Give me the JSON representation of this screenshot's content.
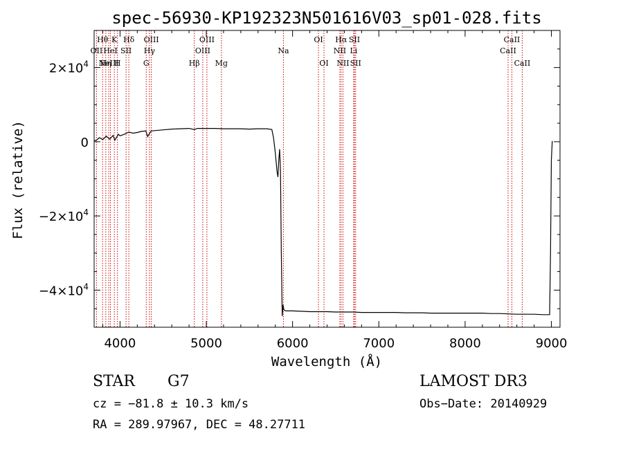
{
  "colors": {
    "background": "#ffffff",
    "foreground": "#000000",
    "line_marker": "#cc0000"
  },
  "chart_data": {
    "type": "line",
    "title": "spec-56930-KP192323N501616V03_sp01-028.fits",
    "xlabel": "Wavelength (Å)",
    "ylabel": "Flux (relative)",
    "xlim": [
      3700,
      9100
    ],
    "ylim": [
      -50000,
      30000
    ],
    "x_ticks": [
      {
        "value": 4000,
        "label": "4000"
      },
      {
        "value": 5000,
        "label": "5000"
      },
      {
        "value": 6000,
        "label": "6000"
      },
      {
        "value": 7000,
        "label": "7000"
      },
      {
        "value": 8000,
        "label": "8000"
      },
      {
        "value": 9000,
        "label": "9000"
      }
    ],
    "y_ticks": [
      {
        "value": 20000,
        "mantissa": "2×10",
        "exp": "4"
      },
      {
        "value": 0,
        "mantissa": "0",
        "exp": ""
      },
      {
        "value": -20000,
        "mantissa": "−2×10",
        "exp": "4"
      },
      {
        "value": -40000,
        "mantissa": "−4×10",
        "exp": "4"
      }
    ],
    "series": [
      {
        "x": [
          3700,
          3720,
          3760,
          3800,
          3840,
          3880,
          3920,
          3940,
          3960,
          3980,
          4000,
          4050,
          4100,
          4150,
          4200,
          4250,
          4300,
          4320,
          4340,
          4360,
          4400,
          4500,
          4600,
          4700,
          4800,
          4860,
          4900,
          5000,
          5100,
          5200,
          5300,
          5400,
          5500,
          5600,
          5700,
          5760,
          5780,
          5800,
          5820,
          5830,
          5840,
          5850,
          5860,
          5870,
          5880,
          5890,
          5900,
          5910,
          5930,
          6000,
          6100,
          6200,
          6300,
          6400,
          6500,
          6600,
          6700,
          6800,
          6900,
          7000,
          7100,
          7200,
          7300,
          7400,
          7500,
          7600,
          7700,
          7800,
          7900,
          8000,
          8100,
          8200,
          8300,
          8400,
          8500,
          8600,
          8700,
          8800,
          8900,
          8980,
          8990,
          9000,
          9010
        ],
        "y": [
          400,
          300,
          1100,
          600,
          1500,
          700,
          1700,
          400,
          1200,
          2000,
          1600,
          2000,
          2600,
          2300,
          2500,
          2800,
          2900,
          1400,
          2200,
          2900,
          3000,
          3200,
          3400,
          3500,
          3600,
          3300,
          3600,
          3600,
          3600,
          3500,
          3500,
          3500,
          3400,
          3500,
          3500,
          3300,
          1000,
          -3000,
          -8000,
          -9500,
          -5000,
          -2000,
          -8000,
          -30000,
          -47000,
          -44000,
          -45300,
          -45500,
          -45600,
          -45600,
          -45700,
          -45800,
          -45800,
          -45800,
          -45900,
          -45900,
          -45900,
          -46000,
          -46000,
          -46000,
          -46000,
          -46000,
          -46100,
          -46100,
          -46100,
          -46200,
          -46200,
          -46200,
          -46200,
          -46200,
          -46200,
          -46200,
          -46300,
          -46300,
          -46400,
          -46500,
          -46500,
          -46500,
          -46600,
          -46600,
          -30000,
          -5000,
          200
        ]
      }
    ],
    "line_markers": [
      {
        "x": 3727,
        "label": "OII",
        "row": 2
      },
      {
        "x": 3798,
        "label": "Hθ",
        "row": 1
      },
      {
        "x": 3835,
        "label": "Hη",
        "row": 3
      },
      {
        "x": 3869,
        "label": "NeIII",
        "row": 3
      },
      {
        "x": 3889,
        "label": "HeI",
        "row": 2
      },
      {
        "x": 3934,
        "label": "K",
        "row": 1
      },
      {
        "x": 3970,
        "label": "H",
        "row": 3
      },
      {
        "x": 4070,
        "label": "SII",
        "row": 2
      },
      {
        "x": 4102,
        "label": "Hδ",
        "row": 1
      },
      {
        "x": 4304,
        "label": "G",
        "row": 3
      },
      {
        "x": 4341,
        "label": "Hγ",
        "row": 2
      },
      {
        "x": 4363,
        "label": "OIII",
        "row": 1
      },
      {
        "x": 4861,
        "label": "Hβ",
        "row": 3
      },
      {
        "x": 4959,
        "label": "OIII",
        "row": 2
      },
      {
        "x": 5007,
        "label": "OIII",
        "row": 1
      },
      {
        "x": 5175,
        "label": "Mg",
        "row": 3
      },
      {
        "x": 5894,
        "label": "Na",
        "row": 2
      },
      {
        "x": 6300,
        "label": "OI",
        "row": 1
      },
      {
        "x": 6364,
        "label": "OI",
        "row": 3
      },
      {
        "x": 6548,
        "label": "NII",
        "row": 2
      },
      {
        "x": 6563,
        "label": "Hα",
        "row": 1
      },
      {
        "x": 6584,
        "label": "NII",
        "row": 3
      },
      {
        "x": 6708,
        "label": "Li",
        "row": 2
      },
      {
        "x": 6717,
        "label": "SII",
        "row": 1
      },
      {
        "x": 6731,
        "label": "SII",
        "row": 3
      },
      {
        "x": 8498,
        "label": "CaII",
        "row": 2
      },
      {
        "x": 8542,
        "label": "CaII",
        "row": 1
      },
      {
        "x": 8662,
        "label": "CaII",
        "row": 3
      }
    ]
  },
  "info": {
    "object_class": "STAR",
    "subclass": "G7",
    "survey": "LAMOST DR3",
    "cz": "cz = −81.8 ± 10.3 km/s",
    "obs_date": "Obs−Date: 20140929",
    "coords": "RA = 289.97967, DEC =  48.27711"
  }
}
